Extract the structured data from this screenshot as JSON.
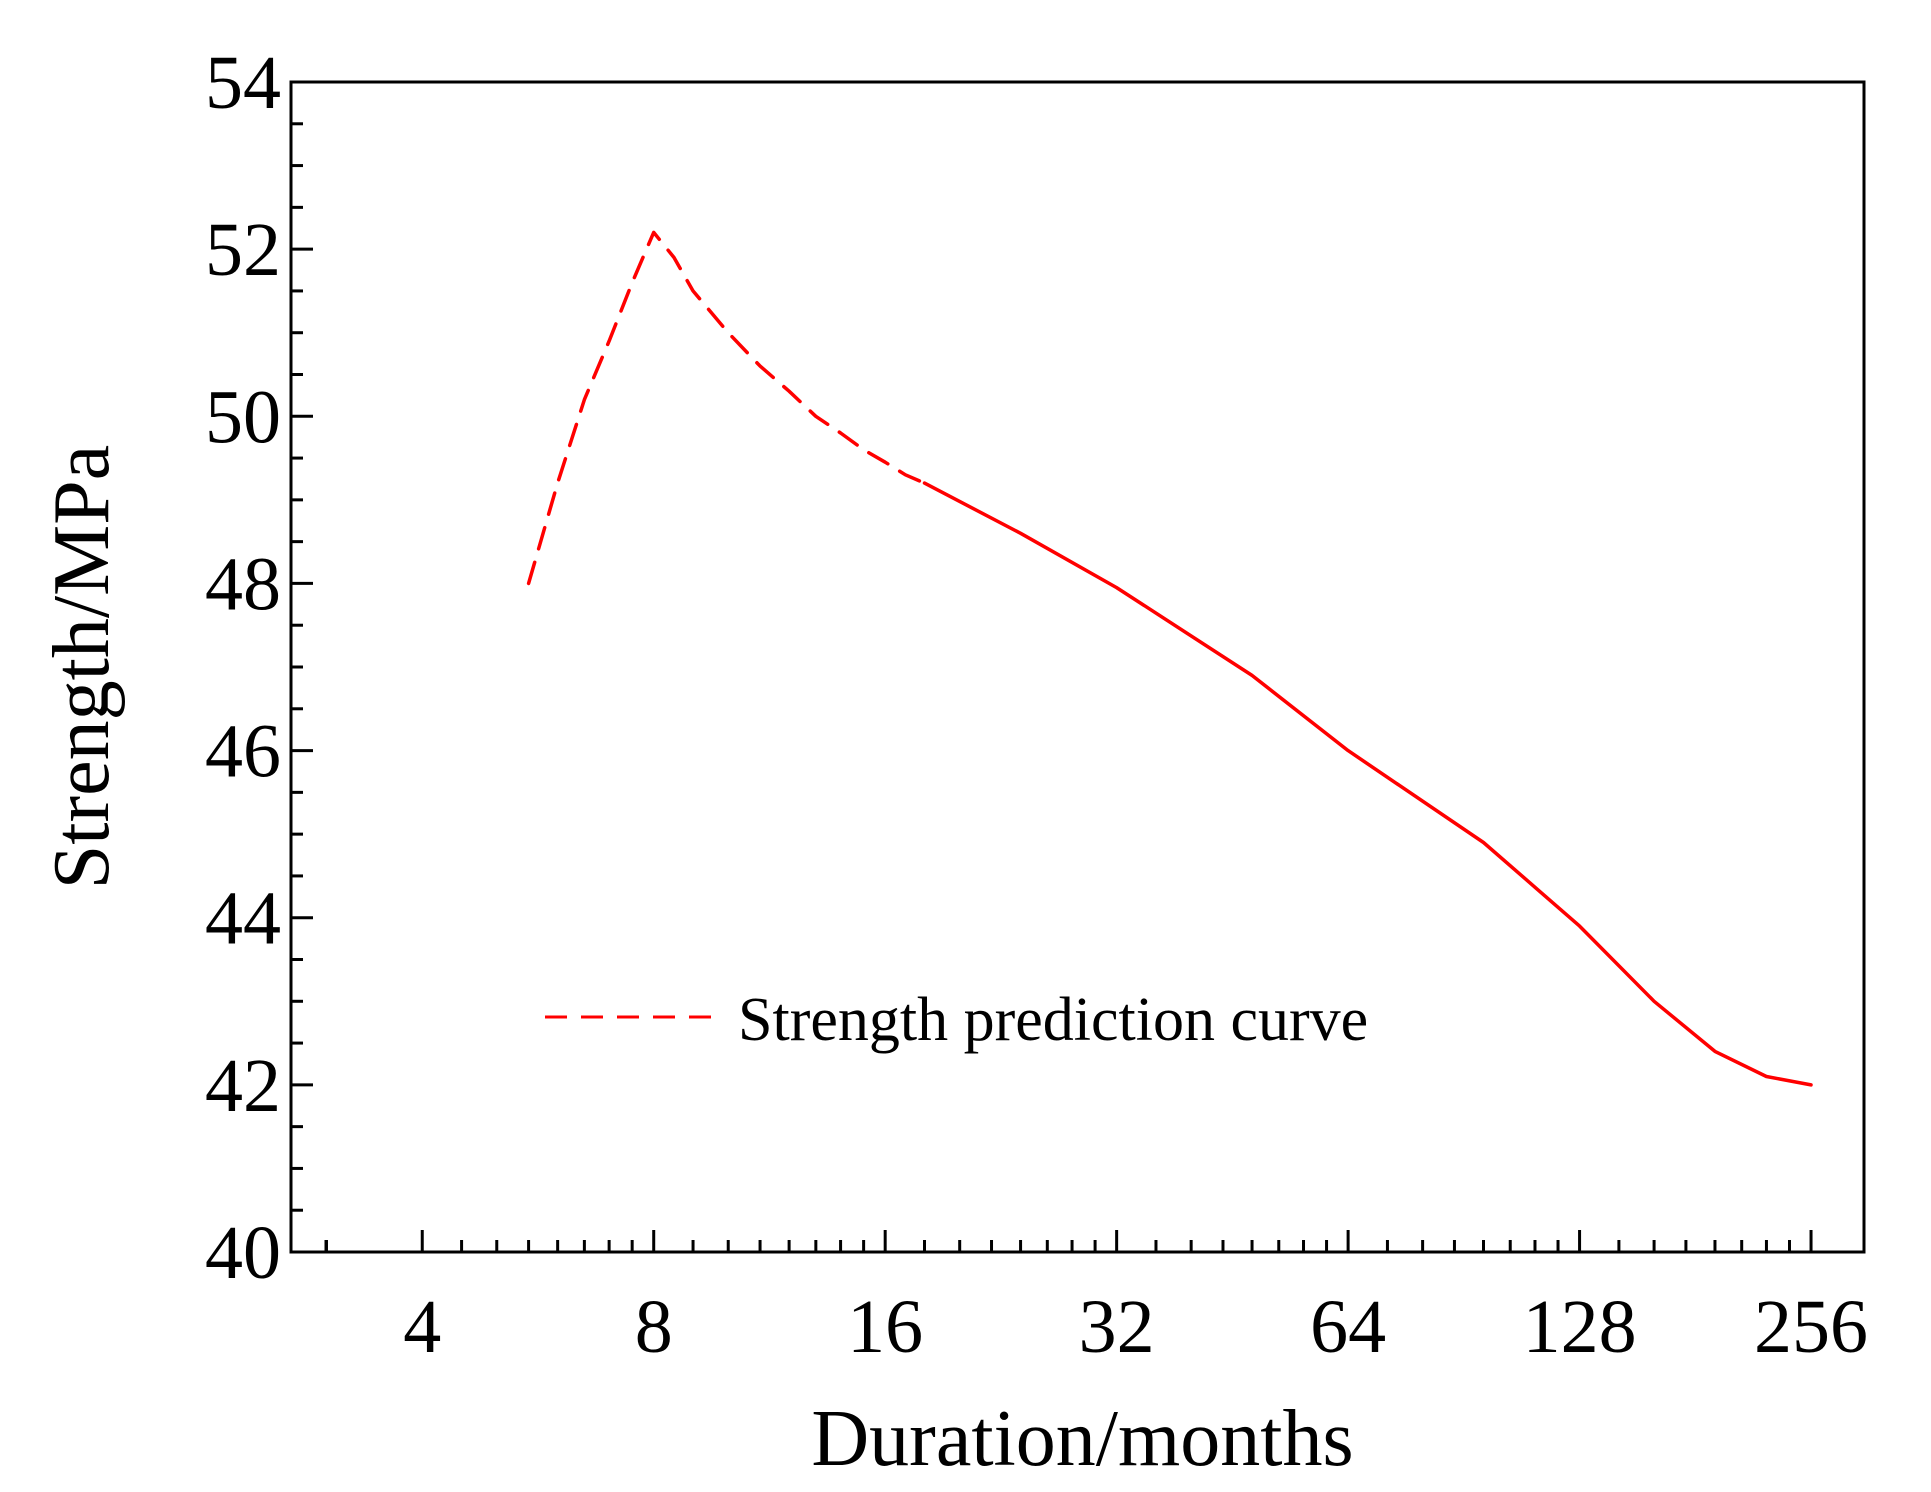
{
  "chart_data": {
    "type": "line",
    "title": "",
    "xlabel": "Duration/months",
    "ylabel": "Strength/MPa",
    "x_scale": "log2",
    "xlim": [
      2.7,
      300
    ],
    "ylim": [
      40,
      54
    ],
    "x_ticks": [
      4,
      8,
      16,
      32,
      64,
      128,
      256
    ],
    "y_ticks": [
      40,
      42,
      44,
      46,
      48,
      50,
      52,
      54
    ],
    "grid": false,
    "legend_position": "lower-middle",
    "line_color": "#ff0000",
    "series": [
      {
        "name": "Strength prediction curve",
        "line_style": "dashed",
        "x": [
          5.5,
          6.0,
          6.5,
          7.0,
          7.5,
          8.0,
          8.5,
          9.0,
          10,
          11,
          12,
          13,
          14,
          15,
          16,
          17,
          18
        ],
        "values": [
          48.0,
          49.2,
          50.2,
          50.9,
          51.6,
          52.2,
          51.9,
          51.5,
          51.0,
          50.6,
          50.3,
          50.0,
          49.8,
          49.6,
          49.45,
          49.3,
          49.2
        ]
      },
      {
        "name": "",
        "line_style": "solid",
        "x": [
          18,
          24,
          32,
          48,
          64,
          96,
          128,
          160,
          192,
          224,
          256
        ],
        "values": [
          49.2,
          48.6,
          47.95,
          46.9,
          46.0,
          44.9,
          43.9,
          43.0,
          42.4,
          42.1,
          42.0
        ]
      }
    ]
  }
}
